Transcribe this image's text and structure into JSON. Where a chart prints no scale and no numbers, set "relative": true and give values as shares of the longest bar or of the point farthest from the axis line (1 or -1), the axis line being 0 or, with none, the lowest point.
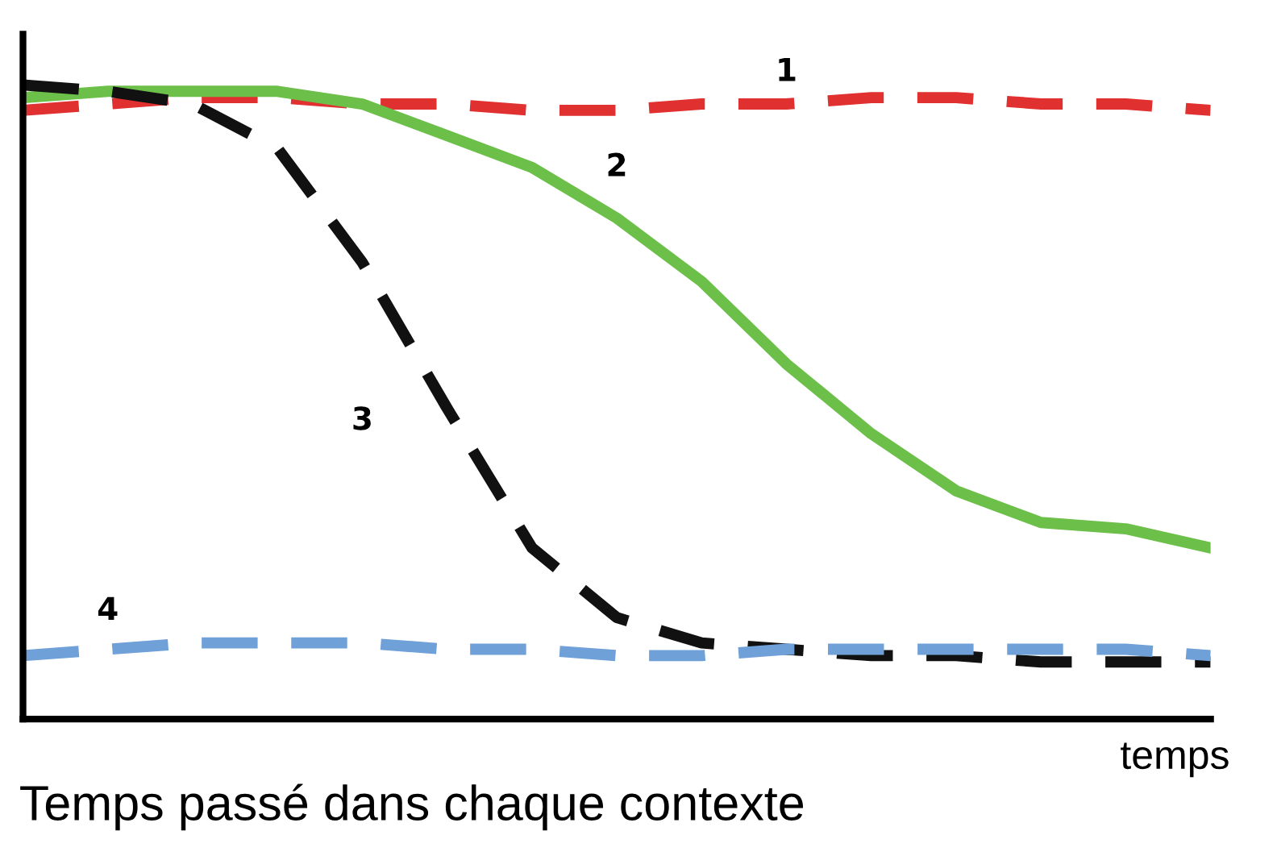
{
  "chart_data": {
    "type": "line",
    "relative": true,
    "title": "Temps passé dans chaque contexte",
    "xlabel": "temps",
    "categories": [
      null,
      null,
      null,
      null,
      null,
      null,
      null,
      null,
      null,
      null,
      null,
      null,
      null,
      null,
      null
    ],
    "series": [
      {
        "name": "1",
        "color": "#e03030",
        "line_style": "dashed",
        "values": [
          0.96,
          0.97,
          0.98,
          0.98,
          0.97,
          0.97,
          0.96,
          0.96,
          0.97,
          0.97,
          0.98,
          0.98,
          0.97,
          0.97,
          0.96
        ]
      },
      {
        "name": "2",
        "color": "#6cc04a",
        "line_style": "solid",
        "values": [
          0.98,
          0.99,
          0.99,
          0.99,
          0.97,
          0.92,
          0.87,
          0.79,
          0.69,
          0.56,
          0.45,
          0.36,
          0.31,
          0.3,
          0.27
        ]
      },
      {
        "name": "3",
        "color": "#111111",
        "line_style": "dashed",
        "values": [
          1,
          0.99,
          0.97,
          0.9,
          0.72,
          0.49,
          0.27,
          0.16,
          0.12,
          0.11,
          0.1,
          0.1,
          0.09,
          0.09,
          0.09
        ]
      },
      {
        "name": "4",
        "color": "#6fa0d8",
        "line_style": "dashed",
        "values": [
          0.1,
          0.11,
          0.12,
          0.12,
          0.12,
          0.11,
          0.11,
          0.1,
          0.1,
          0.11,
          0.11,
          0.11,
          0.11,
          0.11,
          0.1
        ]
      }
    ]
  }
}
